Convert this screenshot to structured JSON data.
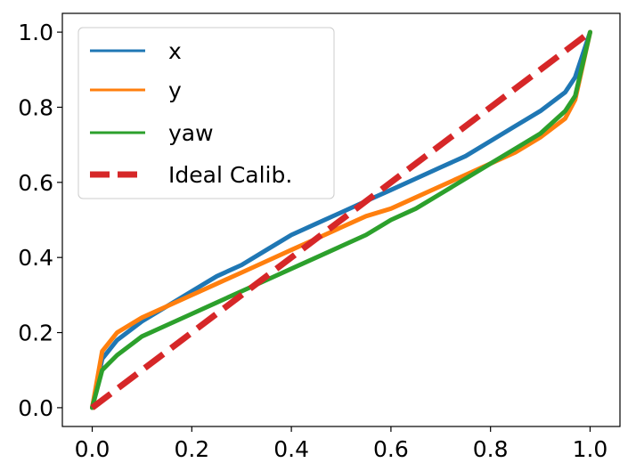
{
  "chart_data": {
    "type": "line",
    "title": "",
    "xlabel": "",
    "ylabel": "",
    "xlim": [
      -0.06,
      1.06
    ],
    "ylim": [
      -0.05,
      1.05
    ],
    "xticks": [
      0.0,
      0.2,
      0.4,
      0.6,
      0.8,
      1.0
    ],
    "yticks": [
      0.0,
      0.2,
      0.4,
      0.6,
      0.8,
      1.0
    ],
    "xtick_labels": [
      "0.0",
      "0.2",
      "0.4",
      "0.6",
      "0.8",
      "1.0"
    ],
    "ytick_labels": [
      "0.0",
      "0.2",
      "0.4",
      "0.6",
      "0.8",
      "1.0"
    ],
    "grid": false,
    "legend_position": "upper-left",
    "series": [
      {
        "name": "x",
        "color": "#1f77b4",
        "style": "solid",
        "x": [
          0.0,
          0.02,
          0.05,
          0.1,
          0.15,
          0.2,
          0.25,
          0.3,
          0.35,
          0.4,
          0.45,
          0.5,
          0.55,
          0.6,
          0.65,
          0.7,
          0.75,
          0.8,
          0.85,
          0.9,
          0.95,
          0.97,
          1.0
        ],
        "y": [
          0.0,
          0.13,
          0.18,
          0.23,
          0.27,
          0.31,
          0.35,
          0.38,
          0.42,
          0.46,
          0.49,
          0.52,
          0.55,
          0.58,
          0.61,
          0.64,
          0.67,
          0.71,
          0.75,
          0.79,
          0.84,
          0.88,
          1.0
        ]
      },
      {
        "name": "y",
        "color": "#ff7f0e",
        "style": "solid",
        "x": [
          0.0,
          0.02,
          0.05,
          0.1,
          0.15,
          0.2,
          0.25,
          0.3,
          0.35,
          0.4,
          0.45,
          0.5,
          0.55,
          0.6,
          0.65,
          0.7,
          0.75,
          0.8,
          0.85,
          0.9,
          0.95,
          0.97,
          1.0
        ],
        "y": [
          0.0,
          0.15,
          0.2,
          0.24,
          0.27,
          0.3,
          0.33,
          0.36,
          0.39,
          0.42,
          0.45,
          0.48,
          0.51,
          0.53,
          0.56,
          0.59,
          0.62,
          0.65,
          0.68,
          0.72,
          0.77,
          0.82,
          1.0
        ]
      },
      {
        "name": "yaw",
        "color": "#2ca02c",
        "style": "solid",
        "x": [
          0.0,
          0.02,
          0.05,
          0.1,
          0.15,
          0.2,
          0.25,
          0.3,
          0.35,
          0.4,
          0.45,
          0.5,
          0.55,
          0.6,
          0.65,
          0.7,
          0.75,
          0.8,
          0.85,
          0.9,
          0.95,
          0.97,
          1.0
        ],
        "y": [
          0.0,
          0.1,
          0.14,
          0.19,
          0.22,
          0.25,
          0.28,
          0.31,
          0.34,
          0.37,
          0.4,
          0.43,
          0.46,
          0.5,
          0.53,
          0.57,
          0.61,
          0.65,
          0.69,
          0.73,
          0.79,
          0.83,
          1.0
        ]
      },
      {
        "name": "Ideal Calib.",
        "color": "#d62728",
        "style": "dashed",
        "x": [
          0.0,
          1.0
        ],
        "y": [
          0.0,
          1.0
        ]
      }
    ]
  }
}
